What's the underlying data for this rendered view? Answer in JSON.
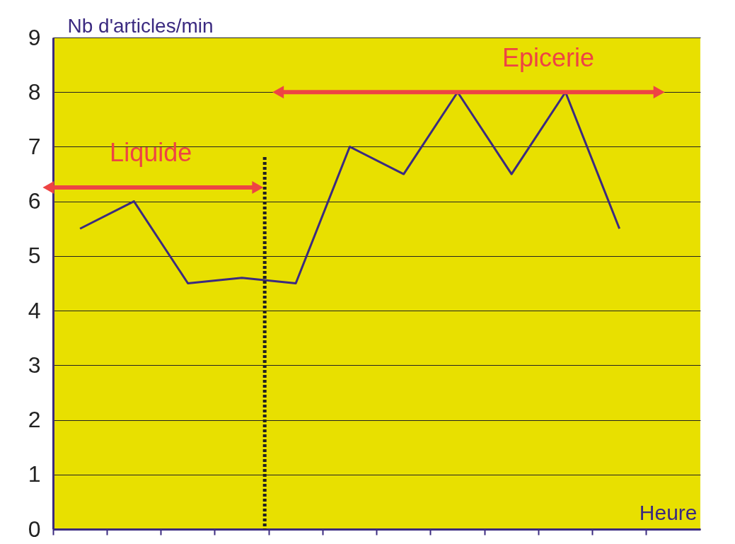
{
  "chart_data": {
    "type": "line",
    "xlabel": "Heure",
    "ylabel": "Nb d'articles/min",
    "categories": [
      null,
      null,
      null,
      null,
      null,
      null,
      null,
      null,
      null,
      null,
      null,
      null
    ],
    "values": [
      5.5,
      6,
      4.5,
      4.6,
      4.5,
      7,
      6.5,
      8,
      6.5,
      8,
      5.5,
      null
    ],
    "color": "#3b2a80",
    "ylim": [
      0,
      9
    ],
    "yticks": [
      0,
      1,
      2,
      3,
      4,
      5,
      6,
      7,
      8,
      9
    ],
    "grid": "y",
    "tick_labels": "y",
    "annotations": [
      "Liquide",
      "Epicerie"
    ]
  }
}
